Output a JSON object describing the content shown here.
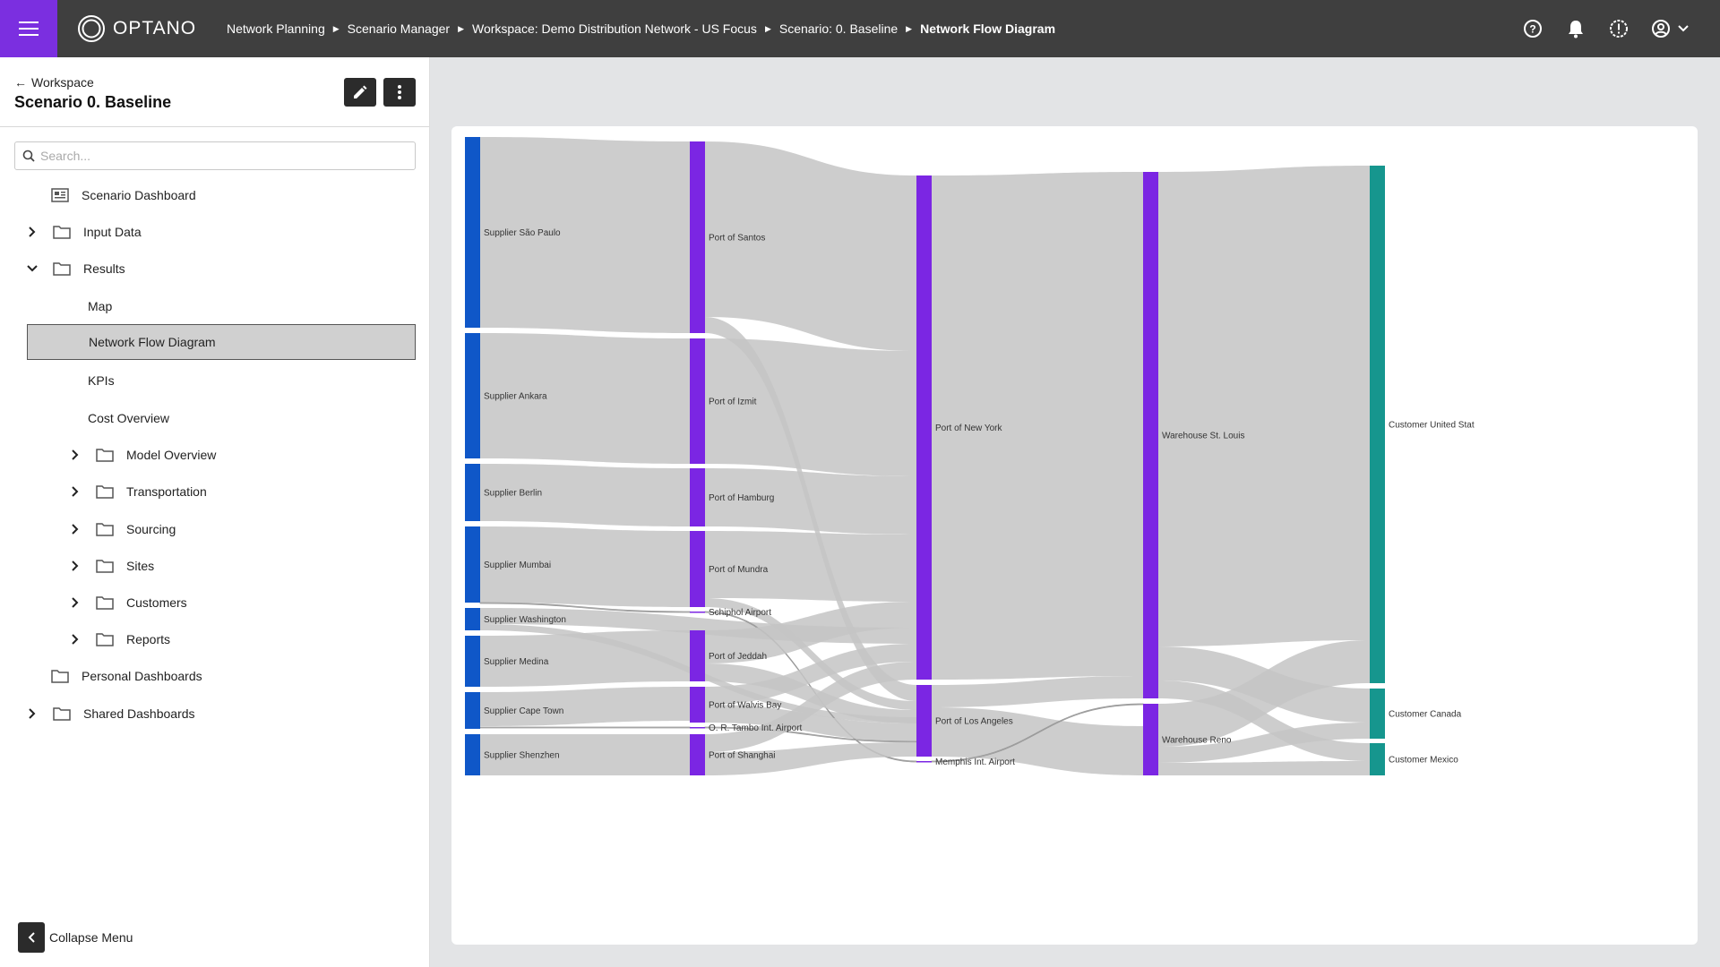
{
  "app": {
    "logo_text": "OPTANO",
    "breadcrumbs": [
      {
        "label": "Network Planning"
      },
      {
        "label": "Scenario Manager"
      },
      {
        "label": "Workspace: Demo Distribution Network - US Focus"
      },
      {
        "label": "Scenario: 0. Baseline"
      },
      {
        "label": "Network Flow Diagram"
      }
    ],
    "icons": [
      "help-icon",
      "bell-icon",
      "alert-icon",
      "user-icon",
      "chevron-down-icon"
    ]
  },
  "sidebar": {
    "back_label": "Workspace",
    "title": "Scenario 0. Baseline",
    "search_placeholder": "Search...",
    "items": [
      {
        "label": "Scenario Dashboard"
      },
      {
        "label": "Input Data"
      },
      {
        "label": "Results"
      },
      {
        "label": "Map"
      },
      {
        "label": "Network Flow Diagram"
      },
      {
        "label": "KPIs"
      },
      {
        "label": "Cost Overview"
      },
      {
        "label": "Model Overview"
      },
      {
        "label": "Transportation"
      },
      {
        "label": "Sourcing"
      },
      {
        "label": "Sites"
      },
      {
        "label": "Customers"
      },
      {
        "label": "Reports"
      },
      {
        "label": "Personal Dashboards"
      },
      {
        "label": "Shared Dashboards"
      }
    ],
    "collapse_label": "Collapse Menu"
  },
  "sankey": {
    "colors": {
      "supplier": "#0f57c8",
      "port": "#7b26e3",
      "warehouse": "#7b26e3",
      "customer": "#16968e",
      "link": "#c4c4c4"
    },
    "nodes": [
      {
        "label": "Supplier São Paulo"
      },
      {
        "label": "Supplier Ankara"
      },
      {
        "label": "Supplier Berlin"
      },
      {
        "label": "Supplier Mumbai"
      },
      {
        "label": "Supplier Washington"
      },
      {
        "label": "Supplier Medina"
      },
      {
        "label": "Supplier Cape Town"
      },
      {
        "label": "Supplier Shenzhen"
      },
      {
        "label": "Port of Santos"
      },
      {
        "label": "Port of Izmit"
      },
      {
        "label": "Port of Hamburg"
      },
      {
        "label": "Port of Mundra"
      },
      {
        "label": "Schiphol Airport"
      },
      {
        "label": "Port of Jeddah"
      },
      {
        "label": "Port of Walvis Bay"
      },
      {
        "label": "O. R. Tambo Int. Airport"
      },
      {
        "label": "Port of Shanghai"
      },
      {
        "label": "Port of New York"
      },
      {
        "label": "Port of Los Angeles"
      },
      {
        "label": "Memphis Int. Airport"
      },
      {
        "label": "Warehouse St. Louis"
      },
      {
        "label": "Warehouse Reno"
      },
      {
        "label": "Customer United Stat"
      },
      {
        "label": "Customer Canada"
      },
      {
        "label": "Customer Mexico"
      }
    ]
  }
}
